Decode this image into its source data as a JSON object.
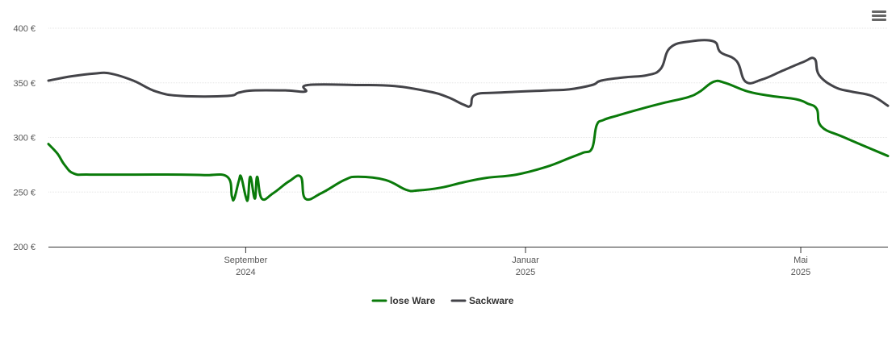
{
  "menu": {
    "icon": "hamburger-menu-icon"
  },
  "chart_data": {
    "type": "line",
    "title": "",
    "xlabel": "",
    "ylabel": "",
    "ylim": [
      200,
      400
    ],
    "y_ticks": [
      "200 €",
      "250 €",
      "300 €",
      "350 €",
      "400 €"
    ],
    "y_tick_values": [
      200,
      250,
      300,
      350,
      400
    ],
    "x_ticks": [
      {
        "date": "2024-09-01",
        "month": "September",
        "year": "2024"
      },
      {
        "date": "2025-01-01",
        "month": "Januar",
        "year": "2025"
      },
      {
        "date": "2025-05-01",
        "month": "Mai",
        "year": "2025"
      }
    ],
    "xlim": [
      "2024-06-07",
      "2025-06-08"
    ],
    "grid": true,
    "legend_position": "bottom-center",
    "series": [
      {
        "name": "lose Ware",
        "color": "#0a7a0a",
        "points": [
          [
            "2024-06-07",
            294
          ],
          [
            "2024-06-11",
            285
          ],
          [
            "2024-06-14",
            275
          ],
          [
            "2024-06-18",
            267
          ],
          [
            "2024-06-25",
            266
          ],
          [
            "2024-07-15",
            266
          ],
          [
            "2024-08-04",
            266
          ],
          [
            "2024-08-14",
            265.5
          ],
          [
            "2024-08-24",
            264
          ],
          [
            "2024-08-26",
            246
          ],
          [
            "2024-08-27",
            244
          ],
          [
            "2024-08-29",
            260
          ],
          [
            "2024-08-30",
            264
          ],
          [
            "2024-09-01",
            246
          ],
          [
            "2024-09-02",
            244
          ],
          [
            "2024-09-03",
            264
          ],
          [
            "2024-09-05",
            244
          ],
          [
            "2024-09-06",
            264
          ],
          [
            "2024-09-08",
            244
          ],
          [
            "2024-09-13",
            249
          ],
          [
            "2024-09-20",
            260
          ],
          [
            "2024-09-25",
            264
          ],
          [
            "2024-09-27",
            244
          ],
          [
            "2024-10-04",
            249
          ],
          [
            "2024-10-14",
            261
          ],
          [
            "2024-10-20",
            264
          ],
          [
            "2024-11-01",
            261
          ],
          [
            "2024-11-10",
            252
          ],
          [
            "2024-11-15",
            251.5
          ],
          [
            "2024-11-25",
            254
          ],
          [
            "2024-12-05",
            259
          ],
          [
            "2024-12-15",
            263
          ],
          [
            "2024-12-28",
            266
          ],
          [
            "2025-01-10",
            273
          ],
          [
            "2025-01-20",
            281
          ],
          [
            "2025-01-26",
            286
          ],
          [
            "2025-01-30",
            290
          ],
          [
            "2025-02-01",
            311
          ],
          [
            "2025-02-04",
            316
          ],
          [
            "2025-02-10",
            320
          ],
          [
            "2025-02-20",
            326
          ],
          [
            "2025-03-03",
            332
          ],
          [
            "2025-03-13",
            337
          ],
          [
            "2025-03-18",
            342
          ],
          [
            "2025-03-24",
            351
          ],
          [
            "2025-03-29",
            350
          ],
          [
            "2025-04-08",
            342
          ],
          [
            "2025-04-18",
            338
          ],
          [
            "2025-04-29",
            335
          ],
          [
            "2025-05-04",
            331
          ],
          [
            "2025-05-08",
            326
          ],
          [
            "2025-05-10",
            310
          ],
          [
            "2025-05-20",
            300
          ],
          [
            "2025-06-08",
            283
          ]
        ]
      },
      {
        "name": "Sackware",
        "color": "#434348",
        "points": [
          [
            "2024-06-07",
            352
          ],
          [
            "2024-06-17",
            356
          ],
          [
            "2024-06-27",
            358.5
          ],
          [
            "2024-07-04",
            358.5
          ],
          [
            "2024-07-14",
            352
          ],
          [
            "2024-07-24",
            342
          ],
          [
            "2024-08-04",
            338
          ],
          [
            "2024-08-24",
            338
          ],
          [
            "2024-08-29",
            341
          ],
          [
            "2024-09-04",
            343
          ],
          [
            "2024-09-19",
            343
          ],
          [
            "2024-09-27",
            342
          ],
          [
            "2024-09-28",
            348
          ],
          [
            "2024-10-20",
            348
          ],
          [
            "2024-11-05",
            347
          ],
          [
            "2024-11-20",
            342
          ],
          [
            "2024-11-28",
            337
          ],
          [
            "2024-12-05",
            330
          ],
          [
            "2024-12-08",
            329
          ],
          [
            "2024-12-10",
            339
          ],
          [
            "2024-12-20",
            341
          ],
          [
            "2025-01-10",
            343
          ],
          [
            "2025-01-20",
            344
          ],
          [
            "2025-01-30",
            348
          ],
          [
            "2025-02-03",
            352
          ],
          [
            "2025-02-13",
            355
          ],
          [
            "2025-02-23",
            357
          ],
          [
            "2025-03-01",
            363
          ],
          [
            "2025-03-05",
            382
          ],
          [
            "2025-03-14",
            388
          ],
          [
            "2025-03-24",
            388
          ],
          [
            "2025-03-27",
            378
          ],
          [
            "2025-04-03",
            370
          ],
          [
            "2025-04-07",
            351
          ],
          [
            "2025-04-14",
            353
          ],
          [
            "2025-04-23",
            361
          ],
          [
            "2025-05-02",
            369
          ],
          [
            "2025-05-07",
            372
          ],
          [
            "2025-05-09",
            357
          ],
          [
            "2025-05-16",
            346
          ],
          [
            "2025-05-23",
            342
          ],
          [
            "2025-06-01",
            338
          ],
          [
            "2025-06-08",
            329
          ]
        ]
      }
    ]
  }
}
